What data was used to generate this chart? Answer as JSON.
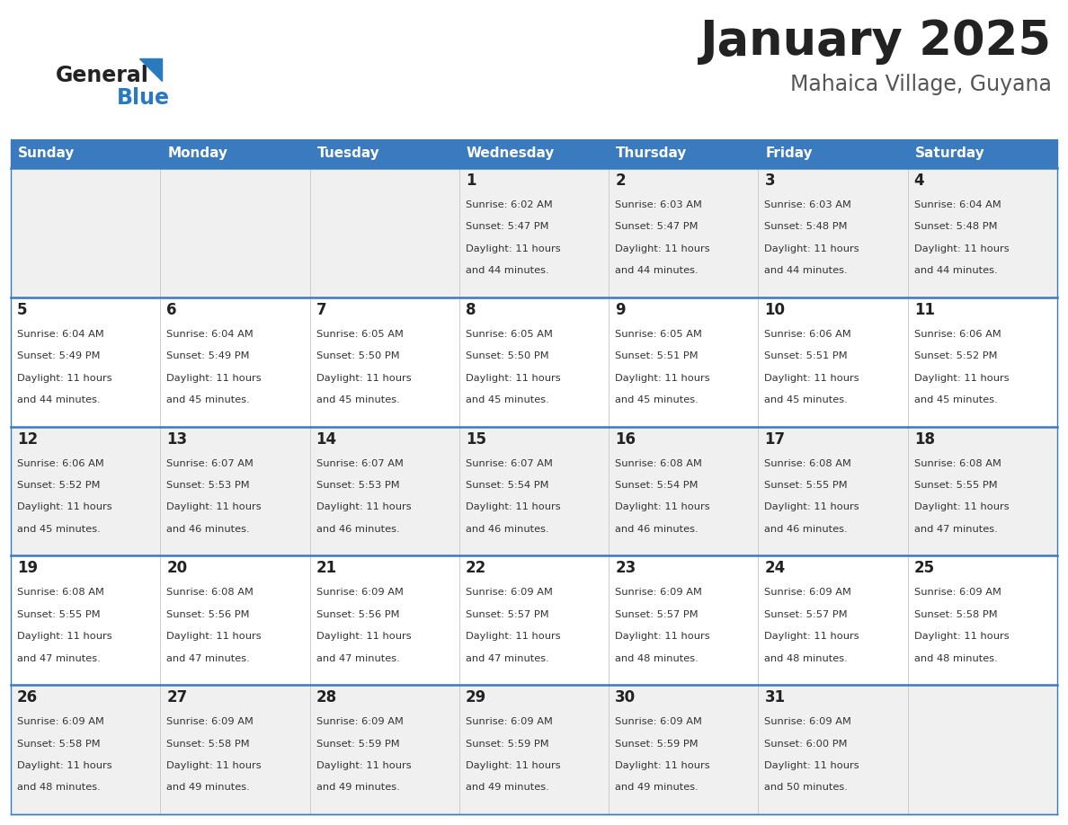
{
  "title": "January 2025",
  "subtitle": "Mahaica Village, Guyana",
  "days_of_week": [
    "Sunday",
    "Monday",
    "Tuesday",
    "Wednesday",
    "Thursday",
    "Friday",
    "Saturday"
  ],
  "header_bg": "#3a7abf",
  "header_text": "#ffffff",
  "row_bg_odd": "#f0f0f0",
  "row_bg_even": "#ffffff",
  "cell_border_color": "#3a7abf",
  "col_divider_color": "#cccccc",
  "title_color": "#222222",
  "subtitle_color": "#555555",
  "day_number_color": "#222222",
  "cell_text_color": "#333333",
  "logo_text_color": "#222222",
  "logo_blue_color": "#2a7abf",
  "fig_width": 11.88,
  "fig_height": 9.18,
  "dpi": 100,
  "calendar_data": [
    [
      null,
      null,
      null,
      {
        "day": 1,
        "sunrise": "6:02 AM",
        "sunset": "5:47 PM",
        "daylight": "11 hours and 44 minutes."
      },
      {
        "day": 2,
        "sunrise": "6:03 AM",
        "sunset": "5:47 PM",
        "daylight": "11 hours and 44 minutes."
      },
      {
        "day": 3,
        "sunrise": "6:03 AM",
        "sunset": "5:48 PM",
        "daylight": "11 hours and 44 minutes."
      },
      {
        "day": 4,
        "sunrise": "6:04 AM",
        "sunset": "5:48 PM",
        "daylight": "11 hours and 44 minutes."
      }
    ],
    [
      {
        "day": 5,
        "sunrise": "6:04 AM",
        "sunset": "5:49 PM",
        "daylight": "11 hours and 44 minutes."
      },
      {
        "day": 6,
        "sunrise": "6:04 AM",
        "sunset": "5:49 PM",
        "daylight": "11 hours and 45 minutes."
      },
      {
        "day": 7,
        "sunrise": "6:05 AM",
        "sunset": "5:50 PM",
        "daylight": "11 hours and 45 minutes."
      },
      {
        "day": 8,
        "sunrise": "6:05 AM",
        "sunset": "5:50 PM",
        "daylight": "11 hours and 45 minutes."
      },
      {
        "day": 9,
        "sunrise": "6:05 AM",
        "sunset": "5:51 PM",
        "daylight": "11 hours and 45 minutes."
      },
      {
        "day": 10,
        "sunrise": "6:06 AM",
        "sunset": "5:51 PM",
        "daylight": "11 hours and 45 minutes."
      },
      {
        "day": 11,
        "sunrise": "6:06 AM",
        "sunset": "5:52 PM",
        "daylight": "11 hours and 45 minutes."
      }
    ],
    [
      {
        "day": 12,
        "sunrise": "6:06 AM",
        "sunset": "5:52 PM",
        "daylight": "11 hours and 45 minutes."
      },
      {
        "day": 13,
        "sunrise": "6:07 AM",
        "sunset": "5:53 PM",
        "daylight": "11 hours and 46 minutes."
      },
      {
        "day": 14,
        "sunrise": "6:07 AM",
        "sunset": "5:53 PM",
        "daylight": "11 hours and 46 minutes."
      },
      {
        "day": 15,
        "sunrise": "6:07 AM",
        "sunset": "5:54 PM",
        "daylight": "11 hours and 46 minutes."
      },
      {
        "day": 16,
        "sunrise": "6:08 AM",
        "sunset": "5:54 PM",
        "daylight": "11 hours and 46 minutes."
      },
      {
        "day": 17,
        "sunrise": "6:08 AM",
        "sunset": "5:55 PM",
        "daylight": "11 hours and 46 minutes."
      },
      {
        "day": 18,
        "sunrise": "6:08 AM",
        "sunset": "5:55 PM",
        "daylight": "11 hours and 47 minutes."
      }
    ],
    [
      {
        "day": 19,
        "sunrise": "6:08 AM",
        "sunset": "5:55 PM",
        "daylight": "11 hours and 47 minutes."
      },
      {
        "day": 20,
        "sunrise": "6:08 AM",
        "sunset": "5:56 PM",
        "daylight": "11 hours and 47 minutes."
      },
      {
        "day": 21,
        "sunrise": "6:09 AM",
        "sunset": "5:56 PM",
        "daylight": "11 hours and 47 minutes."
      },
      {
        "day": 22,
        "sunrise": "6:09 AM",
        "sunset": "5:57 PM",
        "daylight": "11 hours and 47 minutes."
      },
      {
        "day": 23,
        "sunrise": "6:09 AM",
        "sunset": "5:57 PM",
        "daylight": "11 hours and 48 minutes."
      },
      {
        "day": 24,
        "sunrise": "6:09 AM",
        "sunset": "5:57 PM",
        "daylight": "11 hours and 48 minutes."
      },
      {
        "day": 25,
        "sunrise": "6:09 AM",
        "sunset": "5:58 PM",
        "daylight": "11 hours and 48 minutes."
      }
    ],
    [
      {
        "day": 26,
        "sunrise": "6:09 AM",
        "sunset": "5:58 PM",
        "daylight": "11 hours and 48 minutes."
      },
      {
        "day": 27,
        "sunrise": "6:09 AM",
        "sunset": "5:58 PM",
        "daylight": "11 hours and 49 minutes."
      },
      {
        "day": 28,
        "sunrise": "6:09 AM",
        "sunset": "5:59 PM",
        "daylight": "11 hours and 49 minutes."
      },
      {
        "day": 29,
        "sunrise": "6:09 AM",
        "sunset": "5:59 PM",
        "daylight": "11 hours and 49 minutes."
      },
      {
        "day": 30,
        "sunrise": "6:09 AM",
        "sunset": "5:59 PM",
        "daylight": "11 hours and 49 minutes."
      },
      {
        "day": 31,
        "sunrise": "6:09 AM",
        "sunset": "6:00 PM",
        "daylight": "11 hours and 50 minutes."
      },
      null
    ]
  ]
}
